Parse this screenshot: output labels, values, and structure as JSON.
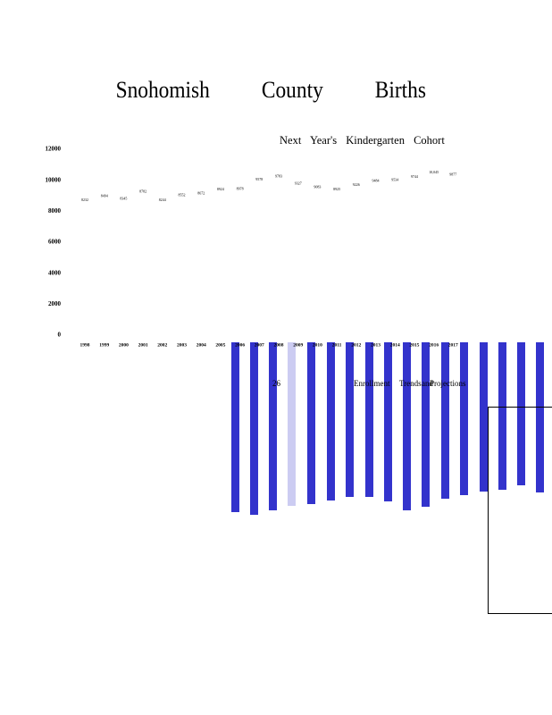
{
  "chart_data": {
    "type": "line",
    "title": "Snohomish County Births",
    "subtitle": "Next Year's Kindergarten Cohort",
    "categories": [
      "1998",
      "1999",
      "2000",
      "2001",
      "2002",
      "2003",
      "2004",
      "2005",
      "2006",
      "2007",
      "2008",
      "2009",
      "2010",
      "2011",
      "2012",
      "2013",
      "2014",
      "2015",
      "2016",
      "2017"
    ],
    "values": [
      8232,
      8494,
      8345,
      8782,
      8244,
      8552,
      8672,
      8924,
      8978,
      9578,
      9783,
      9327,
      9083,
      8925,
      9226,
      9484,
      9534,
      9744,
      10045,
      9877
    ],
    "value_labels": [
      "8232",
      "8494",
      "8345",
      "8782",
      "8244",
      "8552",
      "8672",
      "8924",
      "8978",
      "9578",
      "9783",
      "9327",
      "9083",
      "8925",
      "9226",
      "9484",
      "9534",
      "9744",
      "10,045",
      "9877"
    ],
    "ylim": [
      0,
      12000
    ],
    "yticks": [
      0,
      2000,
      4000,
      6000,
      8000,
      10000,
      12000
    ]
  },
  "slide_number": "26",
  "section_title": [
    "Enrollment",
    "Trends",
    "and",
    "Projections"
  ]
}
